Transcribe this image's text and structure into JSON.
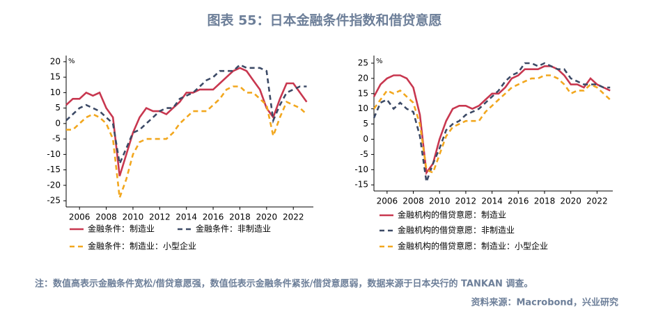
{
  "title": "图表 55：日本金融条件指数和借贷意愿",
  "footnote": "注：数值高表示金融条件宽松/借贷意愿强，数值低表示金融条件紧张/借贷意愿弱，数据来源于日本央行的 TANKAN 调查。",
  "source": "资料来源：Macrobond，兴业研究",
  "chart_data": [
    {
      "type": "line",
      "y_unit": "%",
      "x": [
        2005,
        2005.5,
        2006,
        2006.5,
        2007,
        2007.5,
        2008,
        2008.5,
        2009,
        2009.5,
        2010,
        2010.5,
        2011,
        2011.5,
        2012,
        2012.5,
        2013,
        2013.5,
        2014,
        2014.5,
        2015,
        2015.5,
        2016,
        2016.5,
        2017,
        2017.5,
        2018,
        2018.5,
        2019,
        2019.5,
        2020,
        2020.5,
        2021,
        2021.5,
        2022,
        2022.5,
        2023
      ],
      "xlim": [
        2005,
        2023.5
      ],
      "xticks": [
        2006,
        2008,
        2010,
        2012,
        2014,
        2016,
        2018,
        2020,
        2022
      ],
      "ylim": [
        -27,
        22
      ],
      "yticks": [
        20,
        15,
        10,
        5,
        0,
        -5,
        -10,
        -15,
        -20,
        -25
      ],
      "series": [
        {
          "name": "金融条件：制造业",
          "color": "#c8374f",
          "dashed": false,
          "values": [
            6,
            8,
            8,
            10,
            9,
            10,
            5,
            2,
            -17,
            -10,
            -3,
            2,
            5,
            4,
            4,
            3,
            5,
            7,
            10,
            10,
            11,
            11,
            11,
            13,
            15,
            17,
            18,
            17,
            14,
            11,
            5,
            2,
            8,
            13,
            13,
            10,
            7
          ]
        },
        {
          "name": "金融条件：非制造业",
          "color": "#3c4a66",
          "dashed": true,
          "values": [
            1,
            3,
            5,
            6,
            5,
            4,
            2,
            0,
            -13,
            -8,
            -3,
            -2,
            0,
            2,
            4,
            5,
            5,
            8,
            9,
            10,
            12,
            14,
            15,
            17,
            17,
            17,
            19,
            18,
            18,
            18,
            17,
            1,
            6,
            10,
            11,
            12,
            12
          ]
        },
        {
          "name": "金融条件：制造业：小型企业",
          "color": "#f2a71e",
          "dashed": true,
          "values": [
            -2,
            -2,
            0,
            2,
            3,
            2,
            0,
            -5,
            -24,
            -18,
            -10,
            -6,
            -5,
            -5,
            -5,
            -5,
            -3,
            0,
            2,
            4,
            4,
            4,
            6,
            8,
            11,
            12,
            12,
            10,
            10,
            8,
            6,
            -4,
            2,
            7,
            6,
            5,
            3
          ]
        }
      ]
    },
    {
      "type": "line",
      "y_unit": "%",
      "x": [
        2005,
        2005.5,
        2006,
        2006.5,
        2007,
        2007.5,
        2008,
        2008.5,
        2009,
        2009.5,
        2010,
        2010.5,
        2011,
        2011.5,
        2012,
        2012.5,
        2013,
        2013.5,
        2014,
        2014.5,
        2015,
        2015.5,
        2016,
        2016.5,
        2017,
        2017.5,
        2018,
        2018.5,
        2019,
        2019.5,
        2020,
        2020.5,
        2021,
        2021.5,
        2022,
        2022.5,
        2023
      ],
      "xlim": [
        2005,
        2023.2
      ],
      "xticks": [
        2006,
        2008,
        2010,
        2012,
        2014,
        2016,
        2018,
        2020,
        2022
      ],
      "ylim": [
        -17,
        27.5
      ],
      "yticks": [
        25,
        20,
        15,
        10,
        5,
        0,
        -5,
        -10,
        -15
      ],
      "series": [
        {
          "name": "金融机构的借贷意愿：制造业",
          "color": "#c8374f",
          "dashed": false,
          "values": [
            14,
            18,
            20,
            21,
            21,
            20,
            17,
            8,
            -11,
            -8,
            0,
            6,
            10,
            11,
            11,
            10,
            11,
            13,
            15,
            15,
            17,
            20,
            21,
            23,
            23,
            23,
            24,
            24,
            23,
            21,
            18,
            18,
            17,
            20,
            18,
            17,
            16
          ]
        },
        {
          "name": "金融机构的借贷意愿：非制造业",
          "color": "#3c4a66",
          "dashed": true,
          "values": [
            7,
            12,
            13,
            10,
            12,
            10,
            9,
            1,
            -14,
            -8,
            -3,
            3,
            5,
            6,
            8,
            9,
            10,
            12,
            14,
            16,
            19,
            21,
            22,
            25,
            25,
            24,
            25,
            24,
            23,
            23,
            20,
            19,
            18,
            18,
            18,
            17,
            17
          ]
        },
        {
          "name": "金融机构的借贷意愿：制造业：小型企业",
          "color": "#f2a71e",
          "dashed": true,
          "values": [
            10,
            13,
            16,
            15,
            16,
            14,
            12,
            5,
            -10,
            -11,
            -5,
            1,
            4,
            5,
            6,
            6,
            6,
            9,
            11,
            13,
            15,
            17,
            18,
            19,
            20,
            20,
            21,
            21,
            20,
            18,
            15,
            16,
            16,
            18,
            17,
            15,
            13
          ]
        }
      ]
    }
  ]
}
